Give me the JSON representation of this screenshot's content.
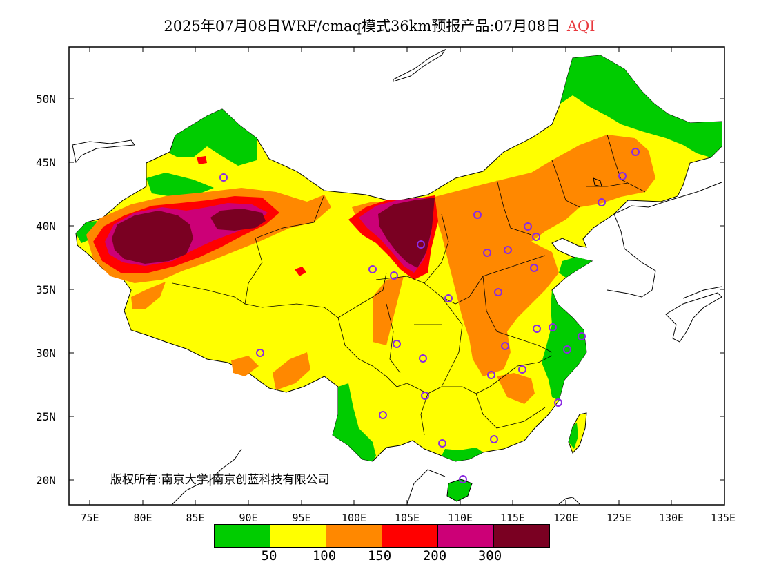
{
  "title": {
    "main": "2025年07月08日WRF/cmaq模式36km预报产品:07月08日",
    "variable": "AQI",
    "variable_color": "#e8383d"
  },
  "axes": {
    "lat_labels": [
      "50N",
      "45N",
      "40N",
      "35N",
      "30N",
      "25N",
      "20N"
    ],
    "lon_labels": [
      "75E",
      "80E",
      "85E",
      "90E",
      "95E",
      "100E",
      "105E",
      "110E",
      "115E",
      "120E",
      "125E",
      "130E",
      "135E"
    ]
  },
  "copyright": "版权所有:南京大学|南京创蓝科技有限公司",
  "legend": {
    "colors": [
      "#00cc00",
      "#ffff00",
      "#ff8800",
      "#ff0000",
      "#cc0077",
      "#7a0022"
    ],
    "ticks": [
      "50",
      "100",
      "150",
      "200",
      "300"
    ]
  },
  "palette": {
    "good": "#00cc00",
    "moderate": "#ffff00",
    "usg": "#ff8800",
    "unhealthy": "#ff0000",
    "very_unhealthy": "#cc0077",
    "hazardous": "#7a0022",
    "station_marker": "#8a2be2"
  }
}
